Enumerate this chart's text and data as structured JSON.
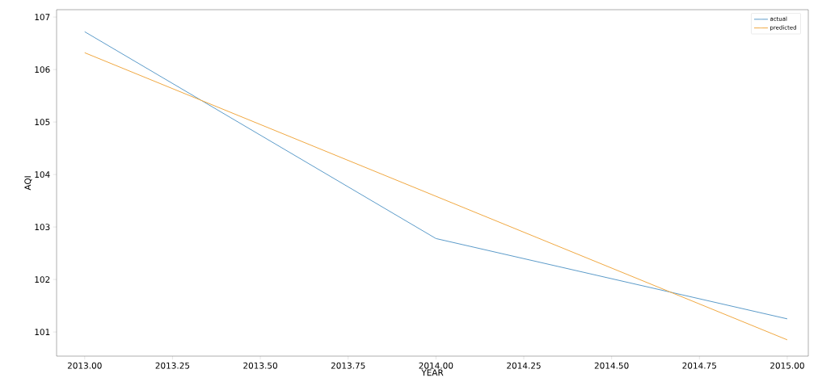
{
  "chart_data": {
    "type": "line",
    "xlabel": "YEAR",
    "ylabel": "AQI",
    "series": [
      {
        "name": "actual",
        "color": "#5b9bc9",
        "x": [
          2013,
          2014,
          2015
        ],
        "values": [
          106.72,
          102.78,
          101.25
        ]
      },
      {
        "name": "predicted",
        "color": "#f0a840",
        "x": [
          2013,
          2015
        ],
        "values": [
          106.32,
          100.85
        ]
      }
    ],
    "xlim": [
      2012.92,
      2015.06
    ],
    "ylim": [
      100.54,
      107.14
    ],
    "xticks": [
      {
        "value": 2013,
        "label": "2013.00"
      },
      {
        "value": 2013.25,
        "label": "2013.25"
      },
      {
        "value": 2013.5,
        "label": "2013.50"
      },
      {
        "value": 2013.75,
        "label": "2013.75"
      },
      {
        "value": 2014,
        "label": "2014.00"
      },
      {
        "value": 2014.25,
        "label": "2014.25"
      },
      {
        "value": 2014.5,
        "label": "2014.50"
      },
      {
        "value": 2014.75,
        "label": "2014.75"
      },
      {
        "value": 2015,
        "label": "2015.00"
      }
    ],
    "yticks": [
      101,
      102,
      103,
      104,
      105,
      106,
      107
    ],
    "legend": "top right",
    "grid": false,
    "marker": "none",
    "line_style": "solid"
  }
}
